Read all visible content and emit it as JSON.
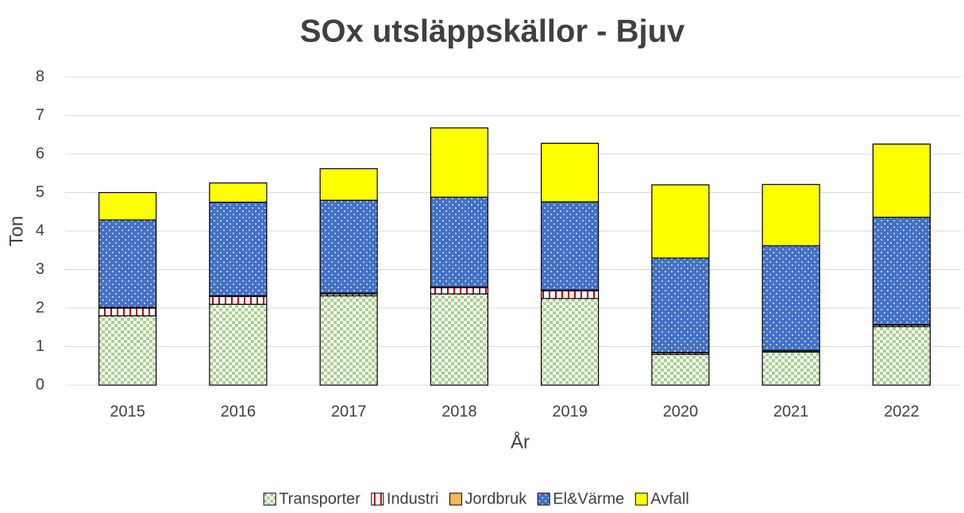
{
  "chart_data": {
    "type": "stacked_bar",
    "title": "SOx utsläppskällor - Bjuv",
    "x_label": "År",
    "y_label": "Ton",
    "categories": [
      "2015",
      "2016",
      "2017",
      "2018",
      "2019",
      "2020",
      "2021",
      "2022"
    ],
    "series": [
      {
        "name": "Transporter",
        "color": "#a9d18e",
        "pattern": "checker",
        "values": [
          1.8,
          2.1,
          2.32,
          2.37,
          2.25,
          0.8,
          0.86,
          1.52
        ]
      },
      {
        "name": "Industri",
        "color": "#c00000",
        "pattern": "hatch",
        "values": [
          0.2,
          0.2,
          0.05,
          0.16,
          0.2,
          0.04,
          0.03,
          0.04
        ]
      },
      {
        "name": "Jordbruk",
        "color": "#f4b183",
        "pattern": "stripe",
        "values": [
          0.02,
          0.02,
          0.02,
          0.02,
          0.02,
          0.01,
          0.01,
          0.01
        ]
      },
      {
        "name": "El&Värme",
        "color": "#4472c4",
        "pattern": "dots",
        "values": [
          2.27,
          2.43,
          2.41,
          2.33,
          2.29,
          2.45,
          2.72,
          2.79
        ]
      },
      {
        "name": "Avfall",
        "color": "#ffff00",
        "pattern": "none",
        "values": [
          0.71,
          0.5,
          0.82,
          1.8,
          1.52,
          1.9,
          1.59,
          1.9
        ]
      }
    ],
    "ylim": [
      0,
      8
    ],
    "yticks": [
      0,
      1,
      2,
      3,
      4,
      5,
      6,
      7,
      8
    ],
    "grid": true,
    "legend": "bottom"
  }
}
